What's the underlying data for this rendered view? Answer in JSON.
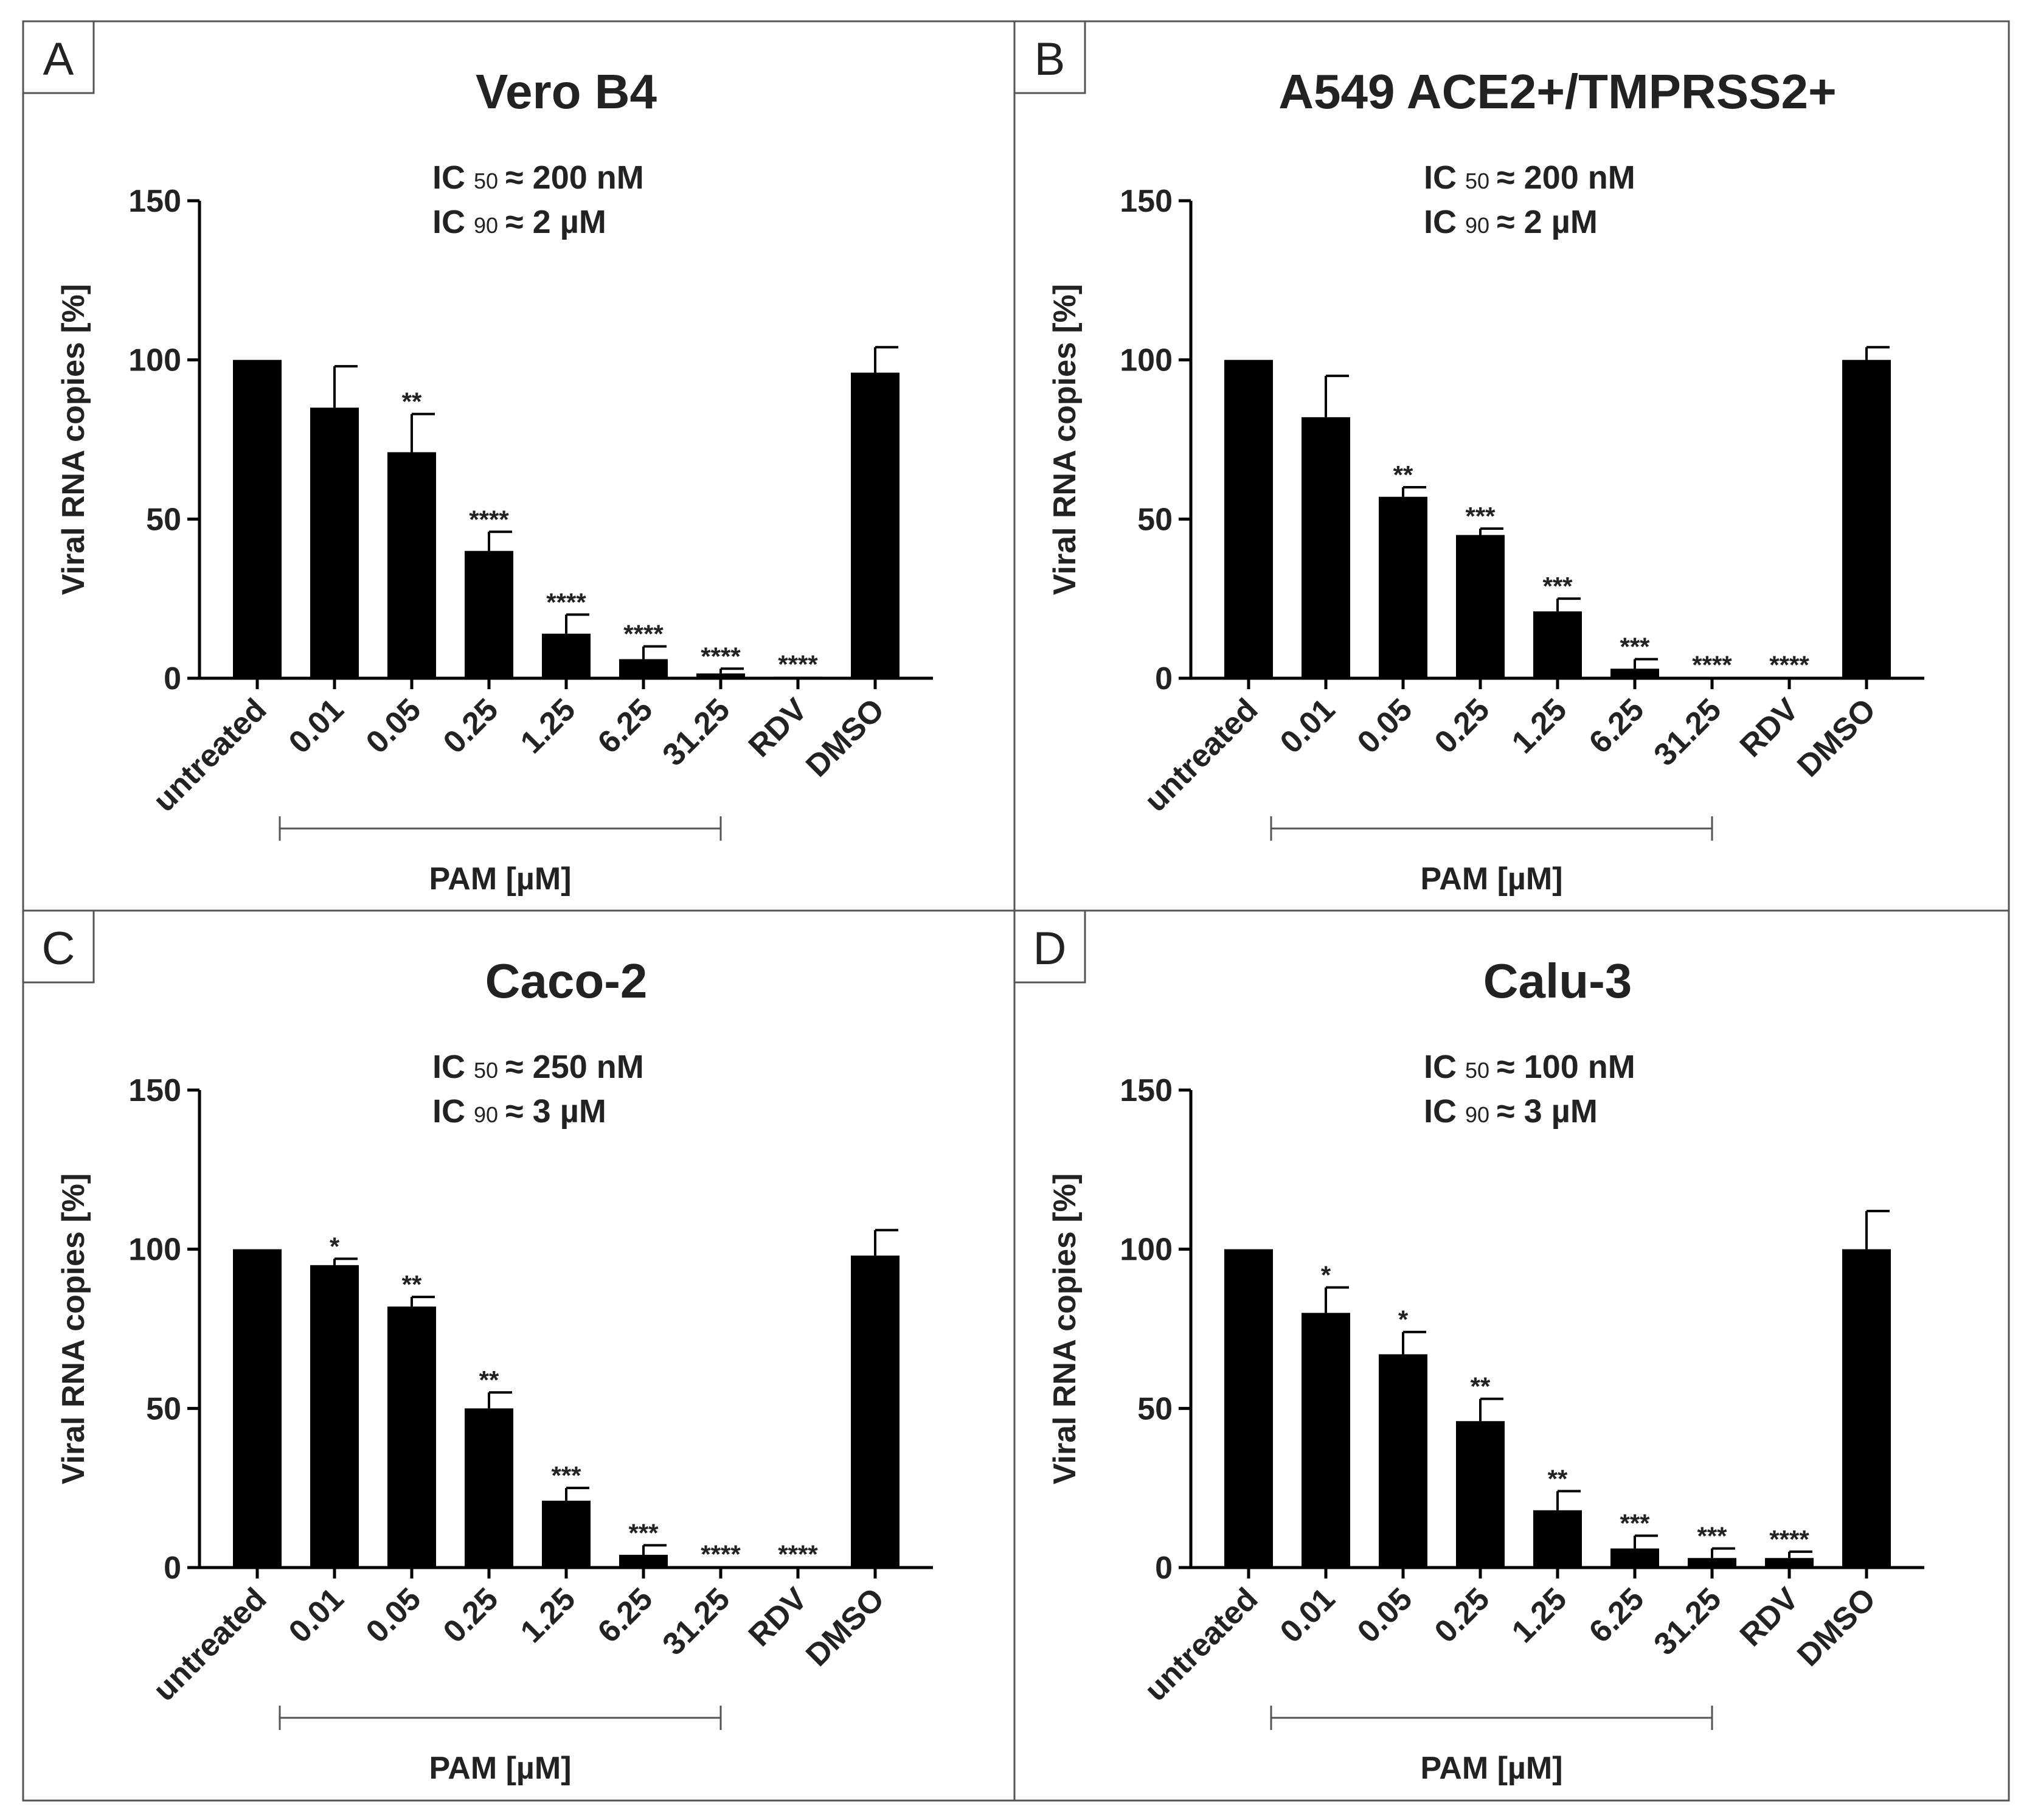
{
  "figure": {
    "x_group_label": "PAM [µM]",
    "ylabel": "Viral RNA copies [%]",
    "bar_color": "#000000",
    "frame_color": "#555555"
  },
  "chart_data": [
    {
      "type": "bar",
      "panel_letter": "A",
      "title": "Vero B4",
      "ic50_prefix": "IC",
      "ic50_sub": "50",
      "ic50_value": "≈ 200 nM",
      "ic90_prefix": "IC",
      "ic90_sub": "90",
      "ic90_value": "≈ 2 µM",
      "xlabel": "PAM [µM]",
      "ylabel": "Viral RNA copies [%]",
      "ylim": [
        0,
        150
      ],
      "yticks": [
        "0",
        "50",
        "100",
        "150"
      ],
      "categories": [
        "untreated",
        "0.01",
        "0.05",
        "0.25",
        "1.25",
        "6.25",
        "31.25",
        "RDV",
        "DMSO"
      ],
      "values": [
        100,
        85,
        71,
        40,
        14,
        6,
        1.5,
        0.5,
        96
      ],
      "errors": [
        0,
        13,
        12,
        6,
        6,
        4,
        1.5,
        0,
        8
      ],
      "significance": [
        "",
        "",
        "**",
        "****",
        "****",
        "****",
        "****",
        "****",
        ""
      ]
    },
    {
      "type": "bar",
      "panel_letter": "B",
      "title": "A549 ACE2+/TMPRSS2+",
      "ic50_prefix": "IC",
      "ic50_sub": "50",
      "ic50_value": "≈ 200 nM",
      "ic90_prefix": "IC",
      "ic90_sub": "90",
      "ic90_value": "≈ 2 µM",
      "xlabel": "PAM [µM]",
      "ylabel": "Viral RNA copies [%]",
      "ylim": [
        0,
        150
      ],
      "yticks": [
        "0",
        "50",
        "100",
        "150"
      ],
      "categories": [
        "untreated",
        "0.01",
        "0.05",
        "0.25",
        "1.25",
        "6.25",
        "31.25",
        "RDV",
        "DMSO"
      ],
      "values": [
        100,
        82,
        57,
        45,
        21,
        3,
        0.3,
        0.3,
        100
      ],
      "errors": [
        0,
        13,
        3,
        2,
        4,
        3,
        0,
        0,
        4
      ],
      "significance": [
        "",
        "",
        "**",
        "***",
        "***",
        "***",
        "****",
        "****",
        ""
      ]
    },
    {
      "type": "bar",
      "panel_letter": "C",
      "title": "Caco-2",
      "ic50_prefix": "IC",
      "ic50_sub": "50",
      "ic50_value": "≈ 250 nM",
      "ic90_prefix": "IC",
      "ic90_sub": "90",
      "ic90_value": "≈ 3 µM",
      "xlabel": "PAM [µM]",
      "ylabel": "Viral RNA copies [%]",
      "ylim": [
        0,
        150
      ],
      "yticks": [
        "0",
        "50",
        "100",
        "150"
      ],
      "categories": [
        "untreated",
        "0.01",
        "0.05",
        "0.25",
        "1.25",
        "6.25",
        "31.25",
        "RDV",
        "DMSO"
      ],
      "values": [
        100,
        95,
        82,
        50,
        21,
        4,
        0.3,
        0.3,
        98
      ],
      "errors": [
        0,
        2,
        3,
        5,
        4,
        3,
        0,
        0,
        8
      ],
      "significance": [
        "",
        "*",
        "**",
        "**",
        "***",
        "***",
        "****",
        "****",
        ""
      ]
    },
    {
      "type": "bar",
      "panel_letter": "D",
      "title": "Calu-3",
      "ic50_prefix": "IC",
      "ic50_sub": "50",
      "ic50_value": "≈ 100 nM",
      "ic90_prefix": "IC",
      "ic90_sub": "90",
      "ic90_value": "≈ 3 µM",
      "xlabel": "PAM [µM]",
      "ylabel": "Viral RNA copies [%]",
      "ylim": [
        0,
        150
      ],
      "yticks": [
        "0",
        "50",
        "100",
        "150"
      ],
      "categories": [
        "untreated",
        "0.01",
        "0.05",
        "0.25",
        "1.25",
        "6.25",
        "31.25",
        "RDV",
        "DMSO"
      ],
      "values": [
        100,
        80,
        67,
        46,
        18,
        6,
        3,
        3,
        100
      ],
      "errors": [
        0,
        8,
        7,
        7,
        6,
        4,
        3,
        2,
        12
      ],
      "significance": [
        "",
        "*",
        "*",
        "**",
        "**",
        "***",
        "***",
        "****",
        ""
      ]
    }
  ]
}
